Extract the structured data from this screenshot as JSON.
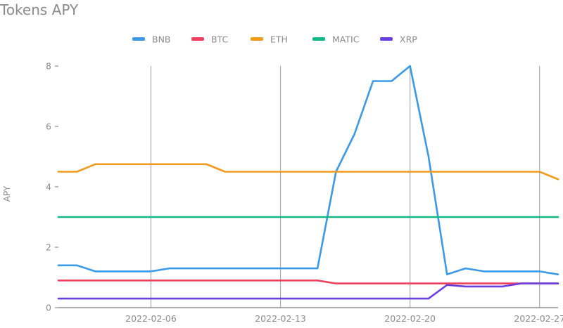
{
  "chart_data": {
    "type": "line",
    "title": "Tokens APY",
    "xlabel": "",
    "ylabel": "APY",
    "ylim": [
      0,
      8
    ],
    "yticks": [
      0,
      2,
      4,
      6,
      8
    ],
    "xticks": [
      "2022-02-06",
      "2022-02-13",
      "2022-02-20",
      "2022-02-27"
    ],
    "grid": "vertical at x ticks",
    "legend": "top",
    "x": [
      "2022-02-01",
      "2022-02-02",
      "2022-02-03",
      "2022-02-04",
      "2022-02-05",
      "2022-02-06",
      "2022-02-07",
      "2022-02-08",
      "2022-02-09",
      "2022-02-10",
      "2022-02-11",
      "2022-02-12",
      "2022-02-13",
      "2022-02-14",
      "2022-02-15",
      "2022-02-16",
      "2022-02-17",
      "2022-02-18",
      "2022-02-19",
      "2022-02-20",
      "2022-02-21",
      "2022-02-22",
      "2022-02-23",
      "2022-02-24",
      "2022-02-25",
      "2022-02-26",
      "2022-02-27",
      "2022-02-28"
    ],
    "series": [
      {
        "name": "BNB",
        "color": "#3b9ae8",
        "values": [
          1.4,
          1.4,
          1.2,
          1.2,
          1.2,
          1.2,
          1.3,
          1.3,
          1.3,
          1.3,
          1.3,
          1.3,
          1.3,
          1.3,
          1.3,
          4.5,
          5.75,
          7.5,
          7.5,
          8.0,
          5.0,
          1.1,
          1.3,
          1.2,
          1.2,
          1.2,
          1.2,
          1.1
        ]
      },
      {
        "name": "BTC",
        "color": "#ee3f5e",
        "values": [
          0.9,
          0.9,
          0.9,
          0.9,
          0.9,
          0.9,
          0.9,
          0.9,
          0.9,
          0.9,
          0.9,
          0.9,
          0.9,
          0.9,
          0.9,
          0.8,
          0.8,
          0.8,
          0.8,
          0.8,
          0.8,
          0.8,
          0.8,
          0.8,
          0.8,
          0.8,
          0.8,
          0.8
        ]
      },
      {
        "name": "ETH",
        "color": "#f39a1a",
        "values": [
          4.5,
          4.5,
          4.75,
          4.75,
          4.75,
          4.75,
          4.75,
          4.75,
          4.75,
          4.5,
          4.5,
          4.5,
          4.5,
          4.5,
          4.5,
          4.5,
          4.5,
          4.5,
          4.5,
          4.5,
          4.5,
          4.5,
          4.5,
          4.5,
          4.5,
          4.5,
          4.5,
          4.25
        ]
      },
      {
        "name": "MATIC",
        "color": "#12b886",
        "values": [
          3,
          3,
          3,
          3,
          3,
          3,
          3,
          3,
          3,
          3,
          3,
          3,
          3,
          3,
          3,
          3,
          3,
          3,
          3,
          3,
          3,
          3,
          3,
          3,
          3,
          3,
          3,
          3
        ]
      },
      {
        "name": "XRP",
        "color": "#6a3fe0",
        "values": [
          0.3,
          0.3,
          0.3,
          0.3,
          0.3,
          0.3,
          0.3,
          0.3,
          0.3,
          0.3,
          0.3,
          0.3,
          0.3,
          0.3,
          0.3,
          0.3,
          0.3,
          0.3,
          0.3,
          0.3,
          0.3,
          0.75,
          0.7,
          0.7,
          0.7,
          0.8,
          0.8,
          0.8
        ]
      }
    ]
  }
}
